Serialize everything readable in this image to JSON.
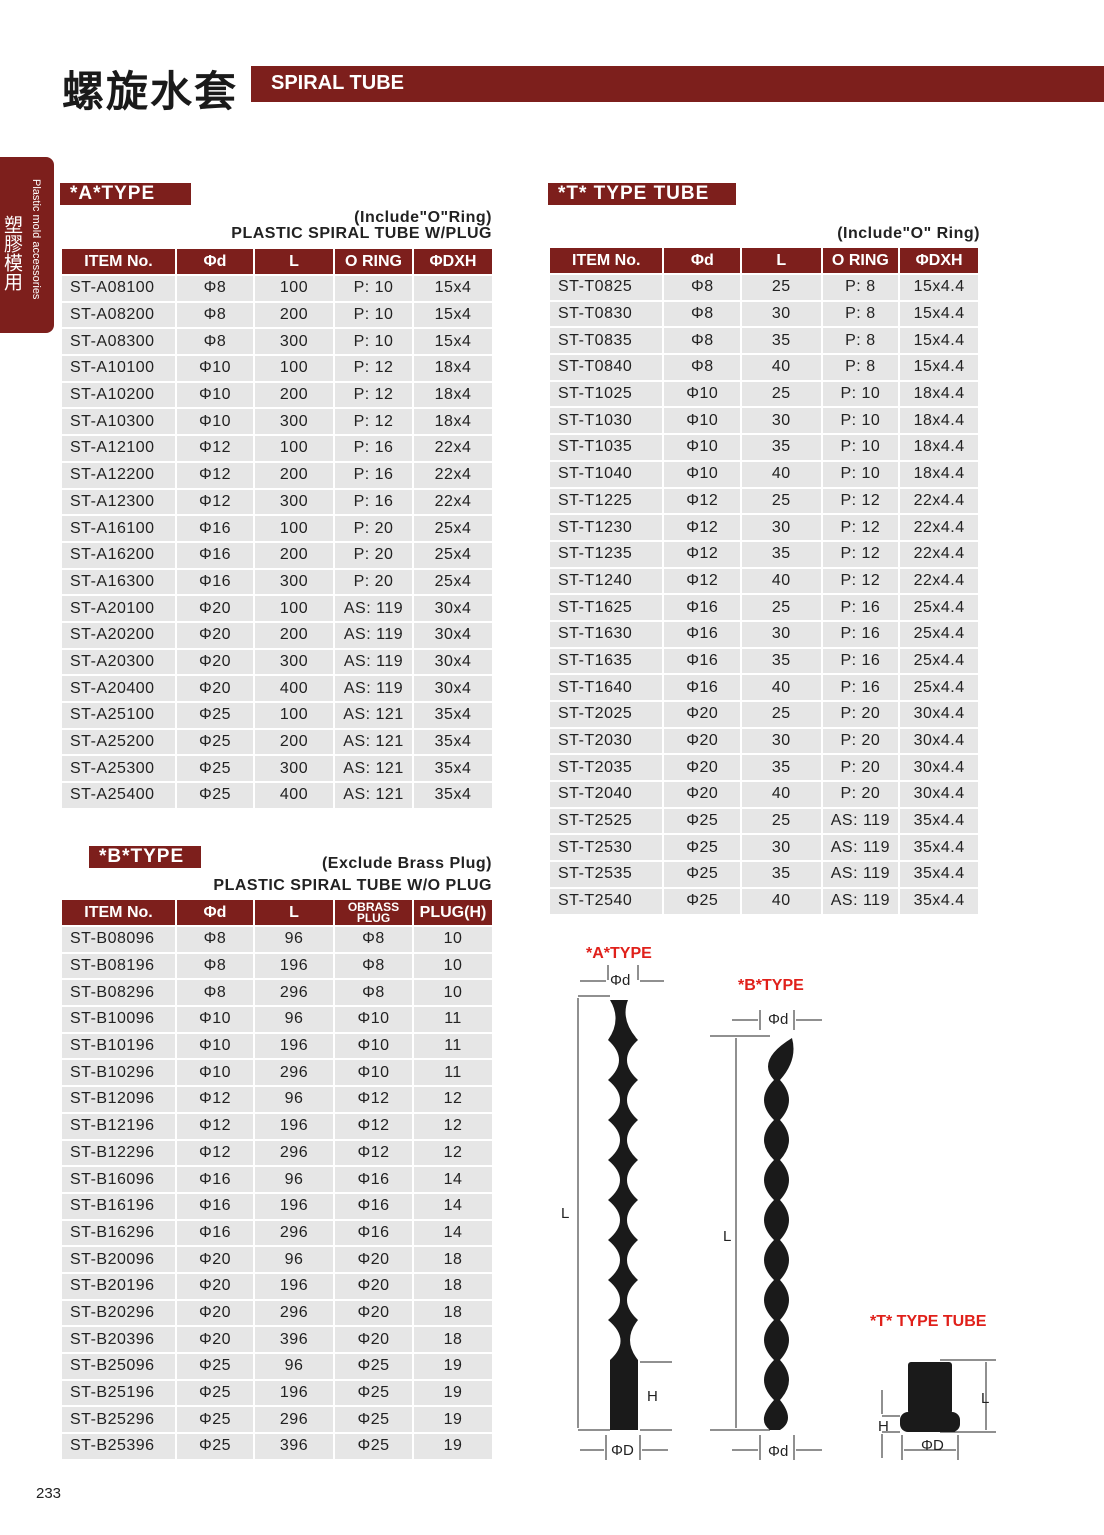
{
  "header": {
    "cn_title": "螺旋水套",
    "en_title": "SPIRAL TUBE"
  },
  "side_tab": {
    "cn": "塑膠模用",
    "en": "Plastic mold accessories"
  },
  "a_type": {
    "tag": "*A*TYPE",
    "note": "(Include\"O\"Ring)",
    "subtitle": "PLASTIC SPIRAL TUBE W/PLUG",
    "columns": [
      "ITEM No.",
      "Φd",
      "L",
      "O RING",
      "ΦDXH"
    ],
    "rows": [
      [
        "ST-A08100",
        "Φ8",
        "100",
        "P: 10",
        "15x4"
      ],
      [
        "ST-A08200",
        "Φ8",
        "200",
        "P: 10",
        "15x4"
      ],
      [
        "ST-A08300",
        "Φ8",
        "300",
        "P: 10",
        "15x4"
      ],
      [
        "ST-A10100",
        "Φ10",
        "100",
        "P: 12",
        "18x4"
      ],
      [
        "ST-A10200",
        "Φ10",
        "200",
        "P: 12",
        "18x4"
      ],
      [
        "ST-A10300",
        "Φ10",
        "300",
        "P: 12",
        "18x4"
      ],
      [
        "ST-A12100",
        "Φ12",
        "100",
        "P: 16",
        "22x4"
      ],
      [
        "ST-A12200",
        "Φ12",
        "200",
        "P: 16",
        "22x4"
      ],
      [
        "ST-A12300",
        "Φ12",
        "300",
        "P: 16",
        "22x4"
      ],
      [
        "ST-A16100",
        "Φ16",
        "100",
        "P: 20",
        "25x4"
      ],
      [
        "ST-A16200",
        "Φ16",
        "200",
        "P: 20",
        "25x4"
      ],
      [
        "ST-A16300",
        "Φ16",
        "300",
        "P: 20",
        "25x4"
      ],
      [
        "ST-A20100",
        "Φ20",
        "100",
        "AS: 119",
        "30x4"
      ],
      [
        "ST-A20200",
        "Φ20",
        "200",
        "AS: 119",
        "30x4"
      ],
      [
        "ST-A20300",
        "Φ20",
        "300",
        "AS: 119",
        "30x4"
      ],
      [
        "ST-A20400",
        "Φ20",
        "400",
        "AS: 119",
        "30x4"
      ],
      [
        "ST-A25100",
        "Φ25",
        "100",
        "AS: 121",
        "35x4"
      ],
      [
        "ST-A25200",
        "Φ25",
        "200",
        "AS: 121",
        "35x4"
      ],
      [
        "ST-A25300",
        "Φ25",
        "300",
        "AS: 121",
        "35x4"
      ],
      [
        "ST-A25400",
        "Φ25",
        "400",
        "AS: 121",
        "35x4"
      ]
    ]
  },
  "b_type": {
    "tag": "*B*TYPE",
    "note": "(Exclude Brass Plug)",
    "subtitle": "PLASTIC SPIRAL TUBE W/O PLUG",
    "columns": [
      "ITEM No.",
      "Φd",
      "L",
      "OBRASS PLUG",
      "PLUG(H)"
    ],
    "rows": [
      [
        "ST-B08096",
        "Φ8",
        "96",
        "Φ8",
        "10"
      ],
      [
        "ST-B08196",
        "Φ8",
        "196",
        "Φ8",
        "10"
      ],
      [
        "ST-B08296",
        "Φ8",
        "296",
        "Φ8",
        "10"
      ],
      [
        "ST-B10096",
        "Φ10",
        "96",
        "Φ10",
        "11"
      ],
      [
        "ST-B10196",
        "Φ10",
        "196",
        "Φ10",
        "11"
      ],
      [
        "ST-B10296",
        "Φ10",
        "296",
        "Φ10",
        "11"
      ],
      [
        "ST-B12096",
        "Φ12",
        "96",
        "Φ12",
        "12"
      ],
      [
        "ST-B12196",
        "Φ12",
        "196",
        "Φ12",
        "12"
      ],
      [
        "ST-B12296",
        "Φ12",
        "296",
        "Φ12",
        "12"
      ],
      [
        "ST-B16096",
        "Φ16",
        "96",
        "Φ16",
        "14"
      ],
      [
        "ST-B16196",
        "Φ16",
        "196",
        "Φ16",
        "14"
      ],
      [
        "ST-B16296",
        "Φ16",
        "296",
        "Φ16",
        "14"
      ],
      [
        "ST-B20096",
        "Φ20",
        "96",
        "Φ20",
        "18"
      ],
      [
        "ST-B20196",
        "Φ20",
        "196",
        "Φ20",
        "18"
      ],
      [
        "ST-B20296",
        "Φ20",
        "296",
        "Φ20",
        "18"
      ],
      [
        "ST-B20396",
        "Φ20",
        "396",
        "Φ20",
        "18"
      ],
      [
        "ST-B25096",
        "Φ25",
        "96",
        "Φ25",
        "19"
      ],
      [
        "ST-B25196",
        "Φ25",
        "196",
        "Φ25",
        "19"
      ],
      [
        "ST-B25296",
        "Φ25",
        "296",
        "Φ25",
        "19"
      ],
      [
        "ST-B25396",
        "Φ25",
        "396",
        "Φ25",
        "19"
      ]
    ]
  },
  "t_type": {
    "tag": "*T* TYPE TUBE",
    "note": "(Include\"O\" Ring)",
    "columns": [
      "ITEM No.",
      "Φd",
      "L",
      "O RING",
      "ΦDXH"
    ],
    "rows": [
      [
        "ST-T0825",
        "Φ8",
        "25",
        "P: 8",
        "15x4.4"
      ],
      [
        "ST-T0830",
        "Φ8",
        "30",
        "P: 8",
        "15x4.4"
      ],
      [
        "ST-T0835",
        "Φ8",
        "35",
        "P: 8",
        "15x4.4"
      ],
      [
        "ST-T0840",
        "Φ8",
        "40",
        "P: 8",
        "15x4.4"
      ],
      [
        "ST-T1025",
        "Φ10",
        "25",
        "P: 10",
        "18x4.4"
      ],
      [
        "ST-T1030",
        "Φ10",
        "30",
        "P: 10",
        "18x4.4"
      ],
      [
        "ST-T1035",
        "Φ10",
        "35",
        "P: 10",
        "18x4.4"
      ],
      [
        "ST-T1040",
        "Φ10",
        "40",
        "P: 10",
        "18x4.4"
      ],
      [
        "ST-T1225",
        "Φ12",
        "25",
        "P: 12",
        "22x4.4"
      ],
      [
        "ST-T1230",
        "Φ12",
        "30",
        "P: 12",
        "22x4.4"
      ],
      [
        "ST-T1235",
        "Φ12",
        "35",
        "P: 12",
        "22x4.4"
      ],
      [
        "ST-T1240",
        "Φ12",
        "40",
        "P: 12",
        "22x4.4"
      ],
      [
        "ST-T1625",
        "Φ16",
        "25",
        "P: 16",
        "25x4.4"
      ],
      [
        "ST-T1630",
        "Φ16",
        "30",
        "P: 16",
        "25x4.4"
      ],
      [
        "ST-T1635",
        "Φ16",
        "35",
        "P: 16",
        "25x4.4"
      ],
      [
        "ST-T1640",
        "Φ16",
        "40",
        "P: 16",
        "25x4.4"
      ],
      [
        "ST-T2025",
        "Φ20",
        "25",
        "P: 20",
        "30x4.4"
      ],
      [
        "ST-T2030",
        "Φ20",
        "30",
        "P: 20",
        "30x4.4"
      ],
      [
        "ST-T2035",
        "Φ20",
        "35",
        "P: 20",
        "30x4.4"
      ],
      [
        "ST-T2040",
        "Φ20",
        "40",
        "P: 20",
        "30x4.4"
      ],
      [
        "ST-T2525",
        "Φ25",
        "25",
        "AS: 119",
        "35x4.4"
      ],
      [
        "ST-T2530",
        "Φ25",
        "30",
        "AS: 119",
        "35x4.4"
      ],
      [
        "ST-T2535",
        "Φ25",
        "35",
        "AS: 119",
        "35x4.4"
      ],
      [
        "ST-T2540",
        "Φ25",
        "40",
        "AS: 119",
        "35x4.4"
      ]
    ]
  },
  "diagrams": {
    "a_label": "*A*TYPE",
    "b_label": "*B*TYPE",
    "t_label": "*T* TYPE TUBE",
    "d": "Φd",
    "D": "ΦD",
    "L": "L",
    "H": "H"
  },
  "page_number": "233",
  "colors": {
    "accent": "#7d1f1c",
    "diagram_label": "#e0201a",
    "row_bg": "#e6e6e6"
  }
}
